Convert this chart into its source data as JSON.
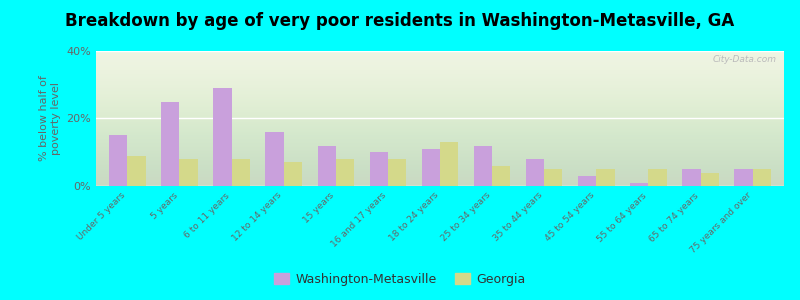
{
  "title": "Breakdown by age of very poor residents in Washington-Metasville, GA",
  "ylabel": "% below half of\npoverty level",
  "categories": [
    "Under 5 years",
    "5 years",
    "6 to 11 years",
    "12 to 14 years",
    "15 years",
    "16 and 17 years",
    "18 to 24 years",
    "25 to 34 years",
    "35 to 44 years",
    "45 to 54 years",
    "55 to 64 years",
    "65 to 74 years",
    "75 years and over"
  ],
  "washington_values": [
    15,
    25,
    29,
    16,
    12,
    10,
    11,
    12,
    8,
    3,
    1,
    5,
    5
  ],
  "georgia_values": [
    9,
    8,
    8,
    7,
    8,
    8,
    13,
    6,
    5,
    5,
    5,
    4,
    5
  ],
  "washington_color": "#c9a0dc",
  "georgia_color": "#d4d98a",
  "background_color": "#00ffff",
  "ylim": [
    0,
    40
  ],
  "yticks": [
    0,
    20,
    40
  ],
  "ytick_labels": [
    "0%",
    "20%",
    "40%"
  ],
  "title_fontsize": 12,
  "legend_labels": [
    "Washington-Metasville",
    "Georgia"
  ],
  "watermark": "City-Data.com"
}
